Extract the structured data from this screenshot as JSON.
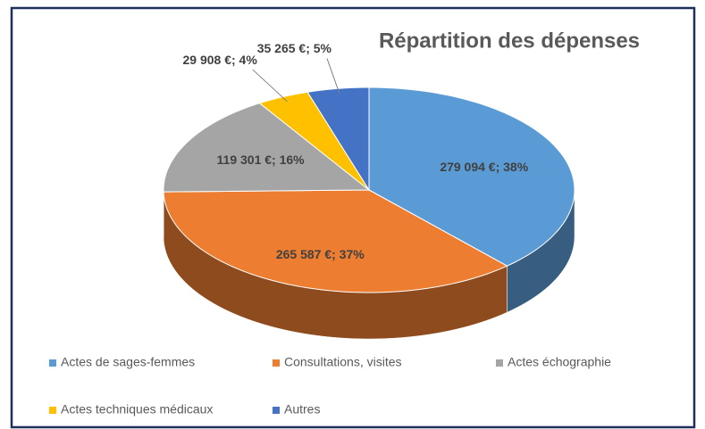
{
  "chart_data": {
    "type": "pie",
    "title": "Répartition des dépenses",
    "categories": [
      "Actes de sages-femmes",
      "Consultations, visites",
      "Actes échographie",
      "Actes techniques médicaux",
      "Autres"
    ],
    "values": [
      279094,
      265587,
      119301,
      29908,
      35265
    ],
    "value_labels": [
      "279 094 €; 38%",
      "265 587 €; 37%",
      "119 301 €; 16%",
      "29 908 €; 4%",
      "35 265 €; 5%"
    ],
    "colors": [
      "#5b9bd5",
      "#ed7d31",
      "#a5a5a5",
      "#ffc000",
      "#4472c4"
    ],
    "legend": "bottom"
  }
}
